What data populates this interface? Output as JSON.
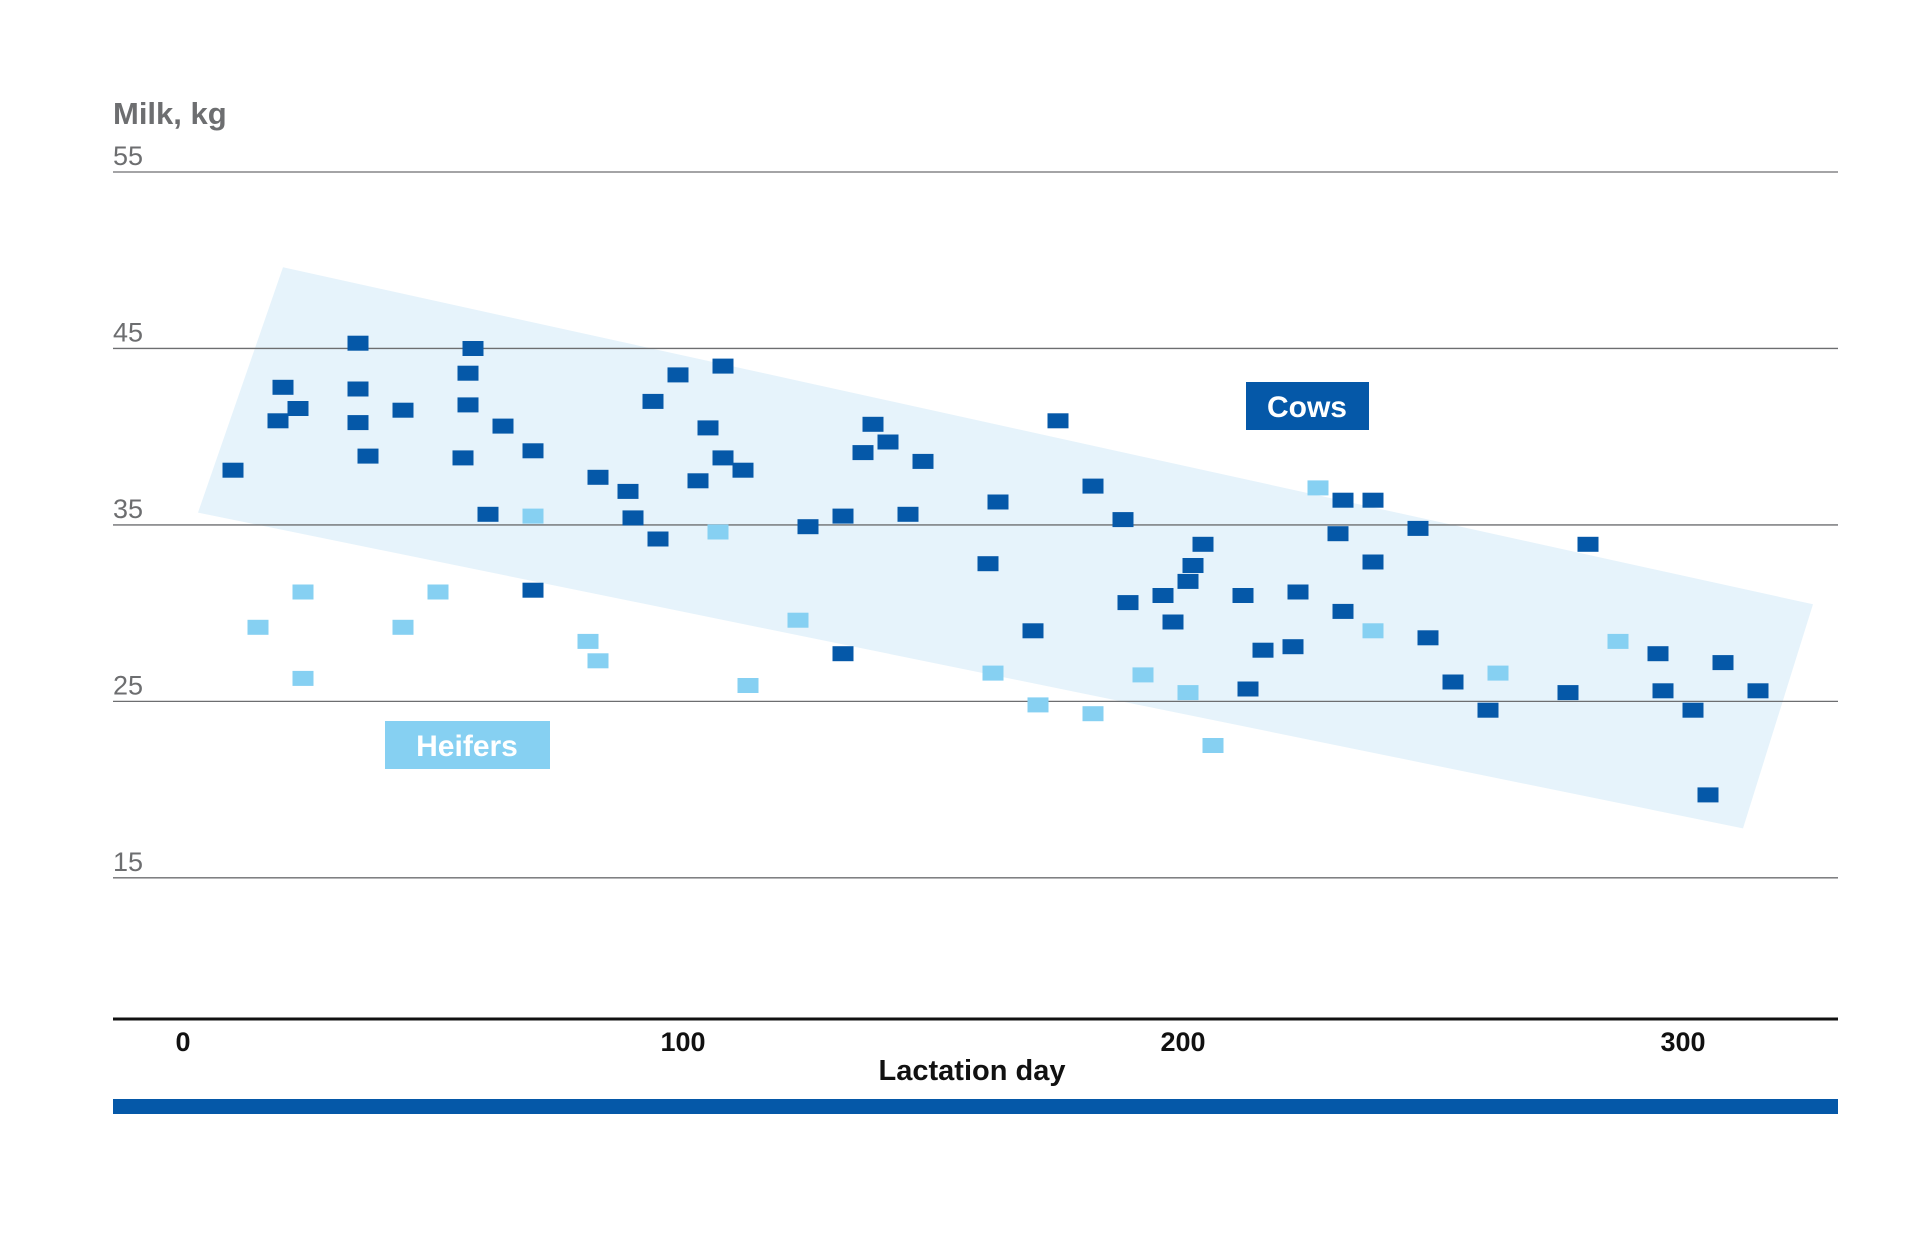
{
  "chart_data": {
    "type": "scatter",
    "ylabel": "Milk, kg",
    "xlabel": "Lactation day",
    "ylim": [
      7,
      55
    ],
    "xlim": [
      -14,
      331
    ],
    "y_ticks": [
      "55",
      "45",
      "35",
      "25",
      "15"
    ],
    "y_tick_values": [
      55,
      45,
      35,
      25,
      15
    ],
    "x_ticks": [
      "0",
      "100",
      "200",
      "300"
    ],
    "x_tick_values": [
      0,
      100,
      200,
      300
    ],
    "grid": true,
    "band": {
      "description": "shaded range for cows",
      "corners": [
        [
          20,
          49.6
        ],
        [
          326,
          30.5
        ],
        [
          312,
          17.8
        ],
        [
          3,
          35.7
        ]
      ],
      "color": "#e6f3fb"
    },
    "colors": {
      "cows": "#0558a8",
      "heifers": "#86d0f2",
      "axis": "#111111",
      "gridline": "#6d6e70",
      "bottom_bar": "#0558a8"
    },
    "legend": {
      "cows": "Cows",
      "heifers": "Heifers"
    },
    "series": [
      {
        "name": "Cows",
        "points": [
          [
            10,
            38.1
          ],
          [
            19,
            40.9
          ],
          [
            20,
            42.8
          ],
          [
            23,
            41.6
          ],
          [
            35,
            45.3
          ],
          [
            35,
            42.7
          ],
          [
            35,
            40.8
          ],
          [
            37,
            38.9
          ],
          [
            44,
            41.5
          ],
          [
            56,
            38.8
          ],
          [
            57,
            43.6
          ],
          [
            57,
            41.8
          ],
          [
            58,
            45.0
          ],
          [
            61,
            35.6
          ],
          [
            64,
            40.6
          ],
          [
            70,
            39.2
          ],
          [
            70,
            31.3
          ],
          [
            83,
            37.7
          ],
          [
            89,
            36.9
          ],
          [
            90,
            35.4
          ],
          [
            94,
            42.0
          ],
          [
            95,
            34.2
          ],
          [
            99,
            43.5
          ],
          [
            103,
            37.5
          ],
          [
            105,
            40.5
          ],
          [
            108,
            38.8
          ],
          [
            108,
            44.0
          ],
          [
            112,
            38.1
          ],
          [
            125,
            34.9
          ],
          [
            132,
            27.7
          ],
          [
            132,
            35.5
          ],
          [
            136,
            39.1
          ],
          [
            138,
            40.7
          ],
          [
            141,
            39.7
          ],
          [
            145,
            35.6
          ],
          [
            148,
            38.6
          ],
          [
            161,
            32.8
          ],
          [
            163,
            36.3
          ],
          [
            170,
            29.0
          ],
          [
            175,
            40.9
          ],
          [
            182,
            37.2
          ],
          [
            188,
            35.3
          ],
          [
            189,
            30.6
          ],
          [
            196,
            31.0
          ],
          [
            198,
            29.5
          ],
          [
            201,
            31.8
          ],
          [
            202,
            32.7
          ],
          [
            204,
            33.9
          ],
          [
            212,
            31.0
          ],
          [
            213,
            25.7
          ],
          [
            216,
            27.9
          ],
          [
            222,
            28.1
          ],
          [
            223,
            31.2
          ],
          [
            231,
            34.5
          ],
          [
            232,
            36.4
          ],
          [
            232,
            30.1
          ],
          [
            238,
            36.4
          ],
          [
            238,
            32.9
          ],
          [
            247,
            34.8
          ],
          [
            249,
            28.6
          ],
          [
            254,
            26.1
          ],
          [
            261,
            24.5
          ],
          [
            277,
            25.5
          ],
          [
            281,
            33.9
          ],
          [
            295,
            27.7
          ],
          [
            296,
            25.6
          ],
          [
            302,
            24.5
          ],
          [
            305,
            19.7
          ],
          [
            308,
            27.2
          ],
          [
            315,
            25.6
          ]
        ]
      },
      {
        "name": "Heifers",
        "points": [
          [
            15,
            29.2
          ],
          [
            24,
            31.2
          ],
          [
            24,
            26.3
          ],
          [
            44,
            29.2
          ],
          [
            51,
            31.2
          ],
          [
            70,
            35.5
          ],
          [
            81,
            28.4
          ],
          [
            83,
            27.3
          ],
          [
            107,
            34.6
          ],
          [
            113,
            25.9
          ],
          [
            123,
            29.6
          ],
          [
            162,
            26.6
          ],
          [
            171,
            24.8
          ],
          [
            182,
            24.3
          ],
          [
            192,
            26.5
          ],
          [
            201,
            25.5
          ],
          [
            206,
            22.5
          ],
          [
            227,
            37.1
          ],
          [
            238,
            29.0
          ],
          [
            263,
            26.6
          ],
          [
            287,
            28.4
          ]
        ]
      }
    ]
  }
}
